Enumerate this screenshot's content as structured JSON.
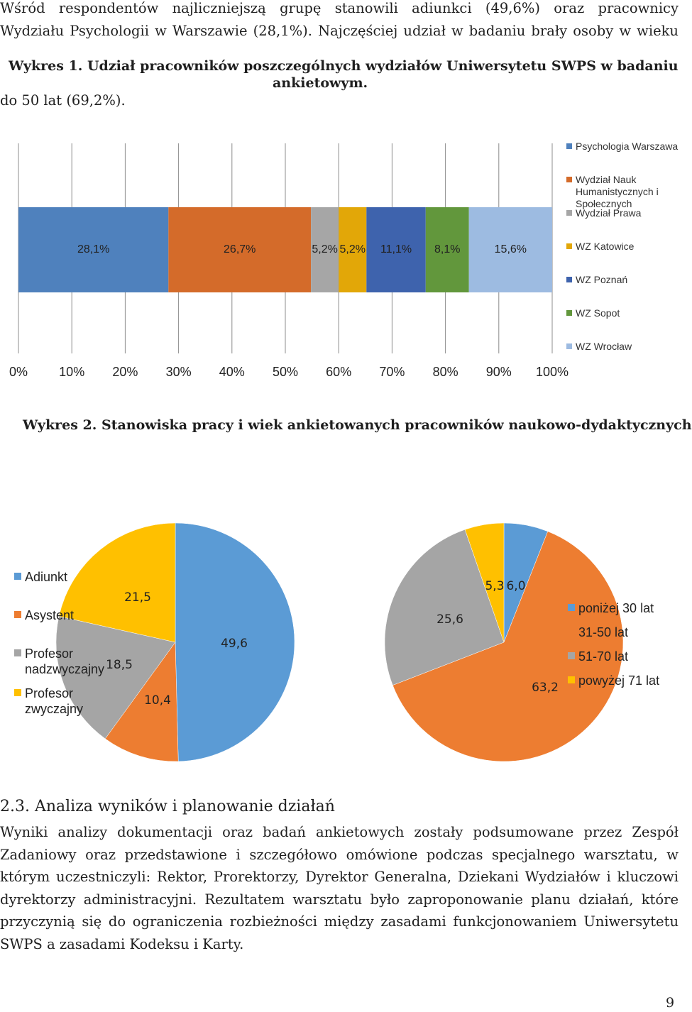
{
  "intro": {
    "line1": "Wśród respondentów najliczniejszą grupę stanowili adiunkci (49,6%) oraz pracownicy",
    "line2": "Wydziału Psychologii w Warszawie (28,1%). Najczęściej udział w badaniu brały osoby w wieku",
    "line3": "do 50 lat (69,2%)."
  },
  "figure1": {
    "caption_line1": "Wykres 1. Udział pracowników poszczególnych wydziałów Uniwersytetu SWPS w badaniu",
    "caption_line2": "ankietowym."
  },
  "figure2": {
    "caption": "Wykres 2. Stanowiska pracy i wiek ankietowanych pracowników naukowo-dydaktycznych"
  },
  "section": {
    "heading": "2.3. Analiza wyników i planowanie działań",
    "lines": [
      "Wyniki analizy dokumentacji oraz badań ankietowych zostały podsumowane przez Zespół",
      "Zadaniowy oraz przedstawione i szczegółowo omówione podczas specjalnego warsztatu, w",
      "którym uczestniczyli: Rektor, Prorektorzy, Dyrektor Generalna, Dziekani Wydziałów i kluczowi",
      "dyrektorzy administracyjni. Rezultatem warsztatu było zaproponowanie planu działań, które",
      "przyczynią się do ograniczenia rozbieżności między zasadami funkcjonowaniem Uniwersytetu"
    ],
    "last_line": "SWPS a zasadami Kodeksu i Karty."
  },
  "page_number": "9",
  "chart_data": [
    {
      "type": "bar",
      "orientation": "horizontal-stacked-100",
      "x_ticks": [
        "0%",
        "10%",
        "20%",
        "30%",
        "40%",
        "50%",
        "60%",
        "70%",
        "80%",
        "90%",
        "100%"
      ],
      "xlim": [
        0,
        100
      ],
      "legend_position": "right",
      "series": [
        {
          "name": "Psychologia Warszawa",
          "value": 28.1,
          "label": "28,1%",
          "color": "#4f81bd"
        },
        {
          "name": "Wydział Nauk Humanistycznych i Społecznych",
          "value": 26.7,
          "label": "26,7%",
          "color": "#d46b2a"
        },
        {
          "name": "Wydział Prawa",
          "value": 5.2,
          "label": "5,2%",
          "color": "#a6a6a6"
        },
        {
          "name": "WZ Katowice",
          "value": 5.2,
          "label": "5,2%",
          "color": "#e2a708"
        },
        {
          "name": "WZ Poznań",
          "value": 11.1,
          "label": "11,1%",
          "color": "#3e63ad"
        },
        {
          "name": "WZ Sopot",
          "value": 8.1,
          "label": "8,1%",
          "color": "#62973c"
        },
        {
          "name": "WZ Wrocław",
          "value": 15.6,
          "label": "15,6%",
          "color": "#9dbbe1"
        }
      ]
    },
    {
      "type": "pie",
      "legend_position": "left",
      "slices": [
        {
          "name": "Adiunkt",
          "value": 49.6,
          "label": "49,6",
          "color": "#5b9bd5"
        },
        {
          "name": "Asystent",
          "value": 10.4,
          "label": "10,4",
          "color": "#ed7d31"
        },
        {
          "name": "Profesor nadzwyczajny",
          "value": 18.5,
          "label": "18,5",
          "color": "#a5a5a5"
        },
        {
          "name": "Profesor zwyczajny",
          "value": 21.5,
          "label": "21,5",
          "color": "#ffc000"
        }
      ],
      "legend_labels": [
        "Adiunkt",
        "Asystent",
        "Profesor nadzwyczajny",
        "Profesor zwyczajny"
      ]
    },
    {
      "type": "pie",
      "legend_position": "right",
      "slices": [
        {
          "name": "poniżej 30 lat",
          "value": 6.0,
          "label": "6,0",
          "color": "#5b9bd5"
        },
        {
          "name": "31-50 lat",
          "value": 63.2,
          "label": "63,2",
          "color": "#ed7d31"
        },
        {
          "name": "51-70 lat",
          "value": 25.6,
          "label": "25,6",
          "color": "#a5a5a5"
        },
        {
          "name": "powyżej 71 lat",
          "value": 5.3,
          "label": "5,3",
          "color": "#ffc000"
        }
      ]
    }
  ]
}
